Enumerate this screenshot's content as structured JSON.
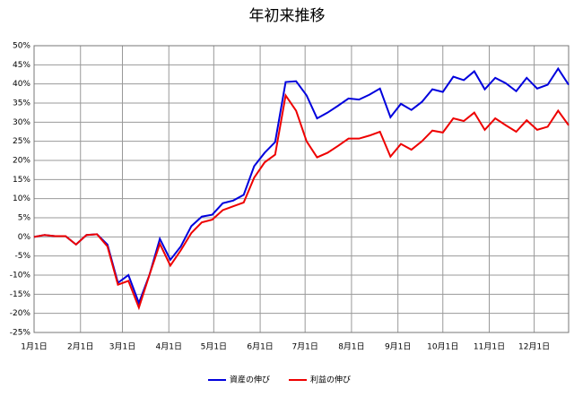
{
  "chart_data": {
    "type": "line",
    "title": "年初来推移",
    "x": [
      0,
      7,
      14,
      21,
      28,
      35,
      42,
      49,
      56,
      63,
      70,
      77,
      84,
      91,
      98,
      105,
      112,
      119,
      126,
      133,
      140,
      147,
      154,
      161,
      168,
      175,
      182,
      189,
      196,
      203,
      210,
      217,
      224,
      231,
      238,
      245,
      252,
      259,
      266,
      273,
      280,
      287,
      294,
      301,
      308,
      315,
      322,
      329,
      336,
      343,
      350,
      357
    ],
    "xlim": [
      0,
      357
    ],
    "xticks": [
      {
        "value": 0,
        "label": "1月1日"
      },
      {
        "value": 31,
        "label": "2月1日"
      },
      {
        "value": 59,
        "label": "3月1日"
      },
      {
        "value": 90,
        "label": "4月1日"
      },
      {
        "value": 120,
        "label": "5月1日"
      },
      {
        "value": 151,
        "label": "6月1日"
      },
      {
        "value": 181,
        "label": "7月1日"
      },
      {
        "value": 212,
        "label": "8月1日"
      },
      {
        "value": 243,
        "label": "9月1日"
      },
      {
        "value": 273,
        "label": "10月1日"
      },
      {
        "value": 304,
        "label": "11月1日"
      },
      {
        "value": 334,
        "label": "12月1日"
      }
    ],
    "ylim": [
      -25,
      50
    ],
    "yticks": [
      {
        "value": -25,
        "label": "-25%"
      },
      {
        "value": -20,
        "label": "-20%"
      },
      {
        "value": -15,
        "label": "-15%"
      },
      {
        "value": -10,
        "label": "-10%"
      },
      {
        "value": -5,
        "label": "-5%"
      },
      {
        "value": 0,
        "label": "0%"
      },
      {
        "value": 5,
        "label": "5%"
      },
      {
        "value": 10,
        "label": "10%"
      },
      {
        "value": 15,
        "label": "15%"
      },
      {
        "value": 20,
        "label": "20%"
      },
      {
        "value": 25,
        "label": "25%"
      },
      {
        "value": 30,
        "label": "30%"
      },
      {
        "value": 35,
        "label": "35%"
      },
      {
        "value": 40,
        "label": "40%"
      },
      {
        "value": 45,
        "label": "45%"
      },
      {
        "value": 50,
        "label": "50%"
      }
    ],
    "grid": true,
    "legend": "bottom",
    "series": [
      {
        "name": "資産の伸び",
        "color": "#0000dd",
        "values": [
          0,
          0.5,
          0.2,
          0.2,
          -2,
          0.5,
          0.7,
          -2,
          -12,
          -10,
          -17.3,
          -10,
          -0.5,
          -6,
          -2.5,
          2.8,
          5.3,
          5.8,
          8.8,
          9.5,
          11,
          18.5,
          22,
          24.8,
          40.5,
          40.7,
          37,
          31,
          32.5,
          34.3,
          36.2,
          35.9,
          37.2,
          38.8,
          31.3,
          34.8,
          33.2,
          35.3,
          38.6,
          37.9,
          41.9,
          41,
          43.3,
          38.6,
          41.6,
          40.2,
          38.1,
          41.6,
          38.8,
          39.8,
          44,
          39.8
        ]
      },
      {
        "name": "利益の伸び",
        "color": "#ee0000",
        "values": [
          0,
          0.5,
          0.2,
          0.2,
          -2,
          0.5,
          0.7,
          -2.5,
          -12.5,
          -11.5,
          -18.5,
          -10,
          -1.8,
          -7.5,
          -3.5,
          1,
          3.8,
          4.5,
          7,
          8,
          9,
          15.5,
          19.5,
          21.5,
          37,
          33,
          25,
          20.8,
          22,
          23.8,
          25.7,
          25.7,
          26.5,
          27.5,
          21,
          24.3,
          22.8,
          25,
          27.8,
          27.3,
          31,
          30.3,
          32.5,
          28,
          31,
          29.2,
          27.5,
          30.5,
          28,
          28.8,
          33,
          29.2
        ]
      }
    ]
  }
}
